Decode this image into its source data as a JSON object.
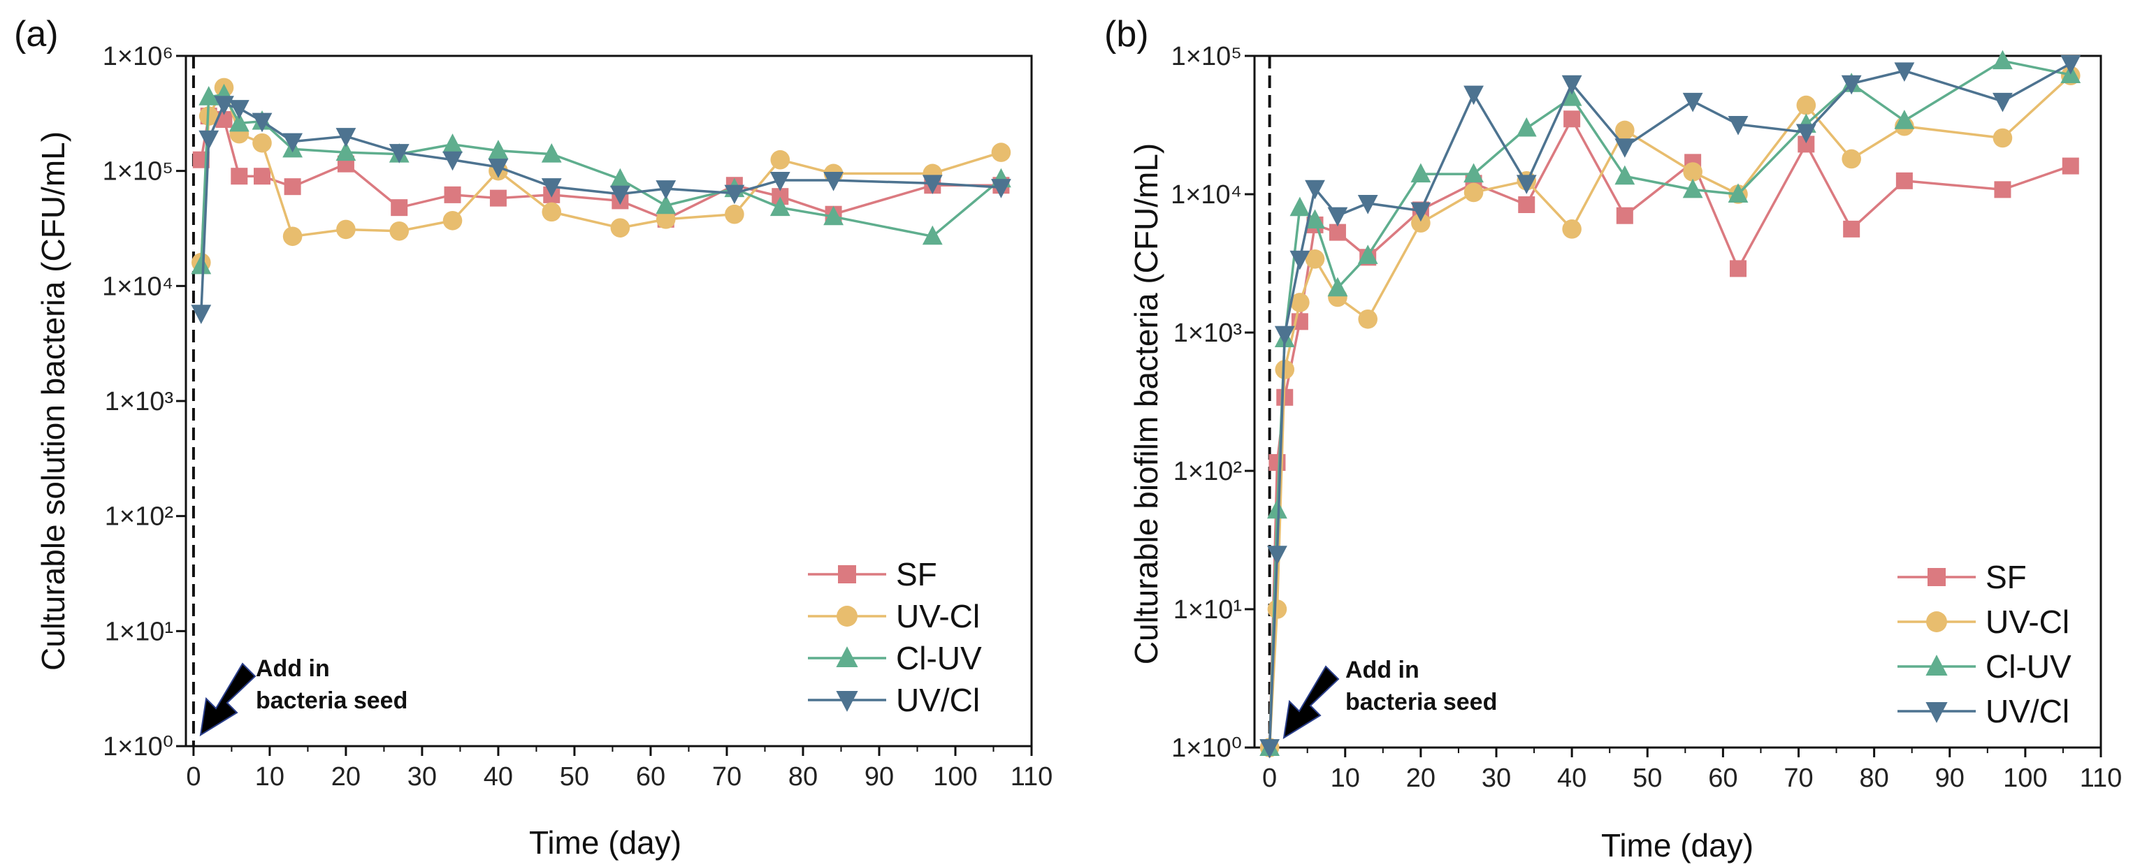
{
  "chart_data": [
    {
      "type": "line",
      "panel_label": "(a)",
      "xlabel": "Time (day)",
      "ylabel": "Culturable solution bacteria (CFU/mL)",
      "yscale": "log",
      "xlim": [
        -1,
        110
      ],
      "ylim": [
        1,
        1000000
      ],
      "xticks": [
        0,
        10,
        20,
        30,
        40,
        50,
        60,
        70,
        80,
        90,
        100,
        110
      ],
      "yticks": [
        1,
        10,
        100,
        1000,
        10000,
        100000,
        1000000
      ],
      "ytick_labels": [
        "1×10⁰",
        "1×10¹",
        "1×10²",
        "1×10³",
        "1×10⁴",
        "1×10⁵",
        "1×10⁶"
      ],
      "annotation": {
        "line1": "Add in",
        "line2": "bacteria seed",
        "x": 0
      },
      "legend_position": "bottom-right",
      "x": [
        1,
        2,
        4,
        6,
        9,
        13,
        20,
        27,
        34,
        40,
        47,
        56,
        62,
        71,
        77,
        84,
        97,
        106
      ],
      "series": [
        {
          "name": "SF",
          "marker": "square",
          "color": "#db7a80",
          "values": [
            125000,
            300000,
            280000,
            90000,
            90000,
            73000,
            115000,
            48000,
            62000,
            58000,
            62000,
            55000,
            38000,
            75000,
            60000,
            42000,
            75000,
            75000
          ]
        },
        {
          "name": "UV-Cl",
          "marker": "circle",
          "color": "#e8bd6e",
          "values": [
            16000,
            300000,
            530000,
            210000,
            175000,
            27000,
            31000,
            30000,
            37000,
            100000,
            44000,
            32000,
            38000,
            42000,
            125000,
            95000,
            95000,
            145000
          ]
        },
        {
          "name": "Cl-UV",
          "marker": "triangle-up",
          "color": "#5fae8e",
          "values": [
            15000,
            440000,
            460000,
            260000,
            270000,
            155000,
            145000,
            140000,
            170000,
            150000,
            140000,
            85000,
            50000,
            70000,
            48000,
            40000,
            27000,
            85000
          ]
        },
        {
          "name": "UV/Cl",
          "marker": "triangle-down",
          "color": "#4d7390",
          "values": [
            5800,
            190000,
            380000,
            350000,
            270000,
            180000,
            200000,
            145000,
            125000,
            108000,
            73000,
            63000,
            70000,
            64000,
            83000,
            83000,
            78000,
            72000
          ]
        }
      ]
    },
    {
      "type": "line",
      "panel_label": "(b)",
      "xlabel": "Time (day)",
      "ylabel": "Culturable biofilm bacteria (CFU/mL)",
      "yscale": "log",
      "xlim": [
        -2,
        110
      ],
      "ylim": [
        1,
        100000
      ],
      "xticks": [
        0,
        10,
        20,
        30,
        40,
        50,
        60,
        70,
        80,
        90,
        100,
        110
      ],
      "yticks": [
        1,
        10,
        100,
        1000,
        10000,
        100000
      ],
      "ytick_labels": [
        "1×10⁰",
        "1×10¹",
        "1×10²",
        "1×10³",
        "1×10⁴",
        "1×10⁵"
      ],
      "annotation": {
        "line1": "Add in",
        "line2": "bacteria seed",
        "x": 0
      },
      "legend_position": "bottom-right",
      "x": [
        0,
        1,
        2,
        4,
        6,
        9,
        13,
        20,
        27,
        34,
        40,
        47,
        56,
        62,
        71,
        77,
        84,
        97,
        106
      ],
      "series": [
        {
          "name": "SF",
          "marker": "square",
          "color": "#db7a80",
          "values": [
            1,
            115,
            340,
            1200,
            6000,
            5300,
            3500,
            7700,
            12000,
            8400,
            35000,
            7000,
            17000,
            2900,
            23000,
            5600,
            12500,
            10800,
            16000
          ]
        },
        {
          "name": "UV-Cl",
          "marker": "circle",
          "color": "#e8bd6e",
          "values": [
            1,
            10,
            540,
            1650,
            3400,
            1800,
            1250,
            6200,
            10300,
            12500,
            5600,
            29000,
            14500,
            10000,
            44000,
            18000,
            31000,
            25500,
            72000
          ]
        },
        {
          "name": "Cl-UV",
          "marker": "triangle-up",
          "color": "#5fae8e",
          "values": [
            1,
            52,
            900,
            8000,
            6500,
            2100,
            3600,
            14000,
            14000,
            30000,
            50000,
            13500,
            10800,
            10000,
            32000,
            63000,
            34000,
            92000,
            73000
          ]
        },
        {
          "name": "UV/Cl",
          "marker": "triangle-down",
          "color": "#4d7390",
          "values": [
            1,
            25,
            970,
            3400,
            11000,
            7000,
            8600,
            7600,
            53000,
            12000,
            63000,
            22000,
            47000,
            32000,
            28000,
            63000,
            78000,
            47000,
            88000
          ]
        }
      ]
    }
  ]
}
